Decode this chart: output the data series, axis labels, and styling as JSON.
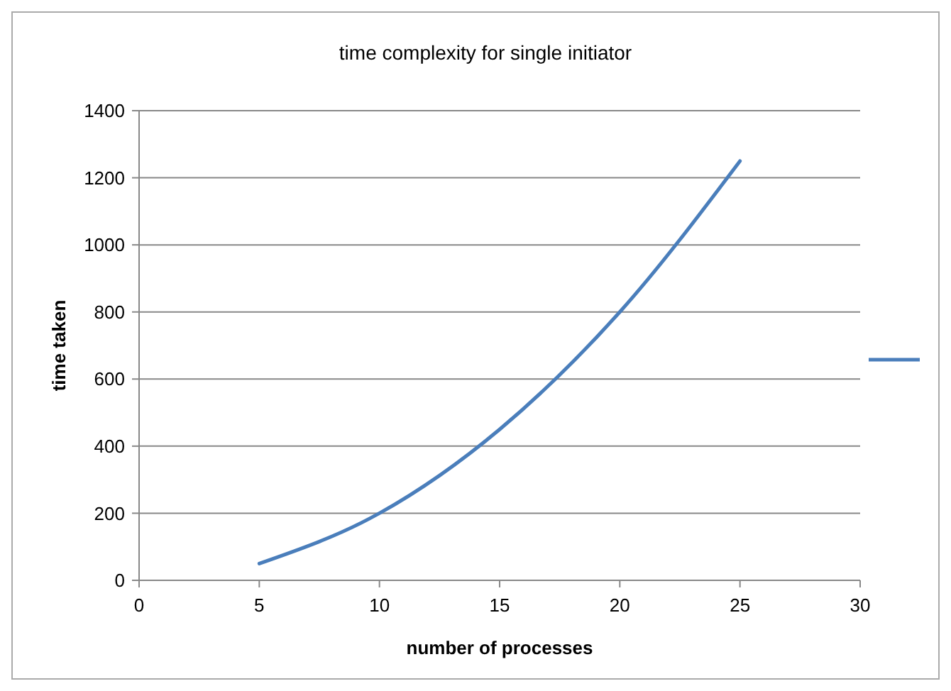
{
  "chart_data": {
    "type": "line",
    "title": "time complexity for  single initiator",
    "xlabel": "number of processes",
    "ylabel": "time taken",
    "x": [
      5,
      10,
      15,
      20,
      25
    ],
    "series": [
      {
        "color": "#4a7ebb",
        "values": [
          50,
          200,
          450,
          800,
          1250
        ]
      }
    ],
    "xlim": [
      0,
      30
    ],
    "xticks": [
      0,
      5,
      10,
      15,
      20,
      25,
      30
    ],
    "ylim": [
      0,
      1400
    ],
    "yticks": [
      0,
      200,
      400,
      600,
      800,
      1000,
      1200,
      1400
    ],
    "grid": "y",
    "marker": "none",
    "line_style": "solid"
  }
}
